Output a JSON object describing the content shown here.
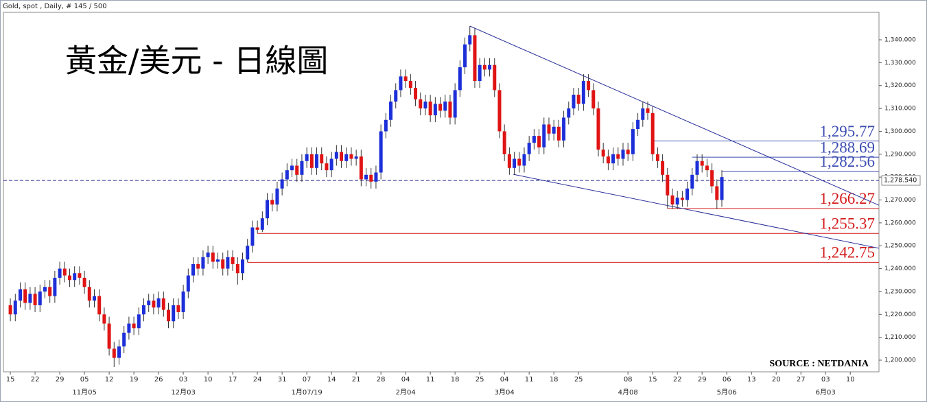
{
  "chart_data": {
    "type": "candlestick",
    "header": "Gold, spot , Daily, # 145 / 500",
    "title": "黃金/美元 - 日線圖",
    "source": "SOURCE : NETDANIA",
    "up_color": "#1c2fd8",
    "down_color": "#e01414",
    "open": [
      1224,
      1220,
      1226,
      1231,
      1225,
      1229,
      1224,
      1230,
      1232,
      1228,
      1236,
      1240,
      1237,
      1235,
      1238,
      1236,
      1232,
      1226,
      1228,
      1220,
      1216,
      1205,
      1201,
      1206,
      1212,
      1216,
      1214,
      1220,
      1224,
      1226,
      1223,
      1227,
      1222,
      1217,
      1224,
      1221,
      1230,
      1237,
      1242,
      1240,
      1245,
      1247,
      1243,
      1244,
      1240,
      1245,
      1242,
      1238,
      1244,
      1250,
      1258,
      1257,
      1262,
      1270,
      1268,
      1275,
      1279,
      1283,
      1285,
      1281,
      1287,
      1290,
      1284,
      1290,
      1286,
      1283,
      1288,
      1291,
      1287,
      1290,
      1288,
      1289,
      1279,
      1281,
      1278,
      1282,
      1300,
      1305,
      1313,
      1318,
      1324,
      1322,
      1319,
      1314,
      1310,
      1313,
      1307,
      1312,
      1309,
      1313,
      1306,
      1318,
      1328,
      1338,
      1342,
      1322,
      1329,
      1327,
      1329,
      1318,
      1300,
      1290,
      1284,
      1288,
      1285,
      1290,
      1295,
      1298,
      1293,
      1303,
      1299,
      1302,
      1296,
      1306,
      1310,
      1316,
      1312,
      1322,
      1318,
      1310,
      1292,
      1289,
      1286,
      1290,
      1288,
      1292,
      1290,
      1301,
      1305,
      1310,
      1308,
      1290,
      1287,
      1281,
      1272,
      1268,
      1271,
      1270,
      1275,
      1281,
      1287,
      1285,
      1283,
      1276,
      1270
    ],
    "high": [
      1227,
      1229,
      1234,
      1234,
      1232,
      1232,
      1233,
      1235,
      1235,
      1239,
      1243,
      1243,
      1240,
      1241,
      1241,
      1239,
      1235,
      1231,
      1231,
      1223,
      1219,
      1208,
      1209,
      1215,
      1219,
      1219,
      1223,
      1227,
      1229,
      1229,
      1230,
      1230,
      1225,
      1227,
      1227,
      1233,
      1240,
      1245,
      1245,
      1248,
      1250,
      1250,
      1247,
      1247,
      1248,
      1248,
      1245,
      1247,
      1253,
      1261,
      1261,
      1265,
      1273,
      1273,
      1278,
      1282,
      1286,
      1288,
      1288,
      1290,
      1293,
      1293,
      1293,
      1293,
      1289,
      1291,
      1294,
      1294,
      1293,
      1293,
      1292,
      1292,
      1284,
      1284,
      1285,
      1303,
      1308,
      1316,
      1321,
      1327,
      1327,
      1325,
      1322,
      1317,
      1316,
      1316,
      1315,
      1315,
      1316,
      1316,
      1321,
      1331,
      1341,
      1346,
      1345,
      1332,
      1332,
      1332,
      1332,
      1321,
      1303,
      1293,
      1291,
      1291,
      1293,
      1298,
      1301,
      1301,
      1306,
      1306,
      1305,
      1305,
      1309,
      1313,
      1319,
      1319,
      1325,
      1325,
      1321,
      1313,
      1295,
      1292,
      1293,
      1293,
      1295,
      1295,
      1304,
      1308,
      1313,
      1313,
      1311,
      1293,
      1290,
      1284,
      1275,
      1274,
      1274,
      1278,
      1284,
      1290,
      1290,
      1288,
      1286,
      1279,
      1283
    ],
    "low": [
      1217,
      1217,
      1223,
      1222,
      1222,
      1221,
      1221,
      1227,
      1225,
      1225,
      1233,
      1234,
      1232,
      1232,
      1233,
      1229,
      1223,
      1223,
      1217,
      1213,
      1202,
      1197,
      1198,
      1203,
      1209,
      1211,
      1211,
      1217,
      1221,
      1220,
      1220,
      1219,
      1214,
      1214,
      1218,
      1218,
      1227,
      1234,
      1237,
      1237,
      1242,
      1240,
      1240,
      1237,
      1237,
      1239,
      1233,
      1235,
      1242.75,
      1247,
      1255.37,
      1256,
      1259,
      1265,
      1265,
      1272,
      1276,
      1280,
      1278,
      1278,
      1284,
      1281,
      1281,
      1283,
      1280,
      1280,
      1285,
      1284,
      1284,
      1285,
      1285,
      1276,
      1276,
      1275,
      1275,
      1279,
      1297,
      1302,
      1310,
      1315,
      1319,
      1316,
      1311,
      1307,
      1307,
      1304,
      1304,
      1306,
      1306,
      1303,
      1303,
      1315,
      1325,
      1335,
      1319,
      1319,
      1324,
      1324,
      1315,
      1297,
      1287,
      1281,
      1281,
      1282,
      1282,
      1287,
      1292,
      1290,
      1290,
      1296,
      1296,
      1293,
      1293,
      1303,
      1307,
      1309,
      1309,
      1315,
      1307,
      1289,
      1286,
      1283,
      1283,
      1285,
      1285,
      1287,
      1287,
      1298,
      1302,
      1305,
      1287,
      1284,
      1278,
      1266.27,
      1266,
      1266,
      1267,
      1267,
      1272,
      1278,
      1282,
      1280,
      1273,
      1266,
      1267
    ],
    "close": [
      1220,
      1226,
      1231,
      1225,
      1229,
      1224,
      1230,
      1232,
      1228,
      1236,
      1240,
      1237,
      1235,
      1238,
      1236,
      1232,
      1226,
      1228,
      1220,
      1216,
      1205,
      1201,
      1206,
      1212,
      1216,
      1214,
      1220,
      1224,
      1226,
      1223,
      1227,
      1222,
      1217,
      1224,
      1221,
      1230,
      1237,
      1242,
      1240,
      1245,
      1247,
      1243,
      1244,
      1240,
      1245,
      1242,
      1238,
      1244,
      1250,
      1258,
      1257,
      1262,
      1270,
      1268,
      1275,
      1279,
      1283,
      1285,
      1281,
      1287,
      1290,
      1284,
      1290,
      1286,
      1283,
      1288,
      1291,
      1287,
      1290,
      1288,
      1289,
      1279,
      1281,
      1278,
      1282,
      1300,
      1305,
      1313,
      1318,
      1324,
      1322,
      1319,
      1314,
      1310,
      1313,
      1307,
      1312,
      1309,
      1313,
      1306,
      1318,
      1328,
      1338,
      1342,
      1322,
      1329,
      1327,
      1329,
      1318,
      1300,
      1290,
      1284,
      1288,
      1285,
      1290,
      1295,
      1298,
      1293,
      1303,
      1299,
      1302,
      1296,
      1306,
      1310,
      1316,
      1312,
      1322,
      1318,
      1310,
      1292,
      1289,
      1286,
      1290,
      1288,
      1292,
      1290,
      1301,
      1305,
      1310,
      1308,
      1290,
      1287,
      1281,
      1272,
      1268,
      1271,
      1270,
      1275,
      1281,
      1287,
      1285,
      1283,
      1276,
      1270,
      1280
    ],
    "xlim": [
      -1.4,
      175.8
    ],
    "xticks": [
      {
        "value": 0,
        "label": "15"
      },
      {
        "value": 5,
        "label": "22"
      },
      {
        "value": 10,
        "label": "29"
      },
      {
        "value": 15,
        "label": "05"
      },
      {
        "value": 20,
        "label": "12"
      },
      {
        "value": 25,
        "label": "19"
      },
      {
        "value": 30,
        "label": "26"
      },
      {
        "value": 35,
        "label": "03"
      },
      {
        "value": 40,
        "label": "10"
      },
      {
        "value": 45,
        "label": "17"
      },
      {
        "value": 50,
        "label": "24"
      },
      {
        "value": 55,
        "label": "31"
      },
      {
        "value": 60,
        "label": "07"
      },
      {
        "value": 65,
        "label": "14"
      },
      {
        "value": 70,
        "label": "21"
      },
      {
        "value": 75,
        "label": "28"
      },
      {
        "value": 80,
        "label": "04"
      },
      {
        "value": 85,
        "label": "11"
      },
      {
        "value": 90,
        "label": "18"
      },
      {
        "value": 95,
        "label": "25"
      },
      {
        "value": 100,
        "label": "04"
      },
      {
        "value": 105,
        "label": "11"
      },
      {
        "value": 110,
        "label": "18"
      },
      {
        "value": 115,
        "label": "25"
      },
      {
        "value": 125,
        "label": "08"
      },
      {
        "value": 130,
        "label": "15"
      },
      {
        "value": 135,
        "label": "22"
      },
      {
        "value": 140,
        "label": "29"
      },
      {
        "value": 145,
        "label": "06"
      },
      {
        "value": 150,
        "label": "13"
      },
      {
        "value": 155,
        "label": "20"
      },
      {
        "value": 160,
        "label": "27"
      },
      {
        "value": 165,
        "label": "03"
      },
      {
        "value": 170,
        "label": "10"
      }
    ],
    "month_ticks": [
      {
        "value": 15,
        "label": "11月05"
      },
      {
        "value": 35,
        "label": "12月03"
      },
      {
        "value": 60,
        "label": "1月07/19"
      },
      {
        "value": 80,
        "label": "2月04"
      },
      {
        "value": 100,
        "label": "3月04"
      },
      {
        "value": 125,
        "label": "4月08"
      },
      {
        "value": 145,
        "label": "5月06"
      },
      {
        "value": 165,
        "label": "6月03"
      }
    ],
    "ylim": [
      1194.9,
      1352
    ],
    "yticks": [
      {
        "value": 1200,
        "label": "1,200.000"
      },
      {
        "value": 1210,
        "label": "1,210.000"
      },
      {
        "value": 1220,
        "label": "1,220.000"
      },
      {
        "value": 1230,
        "label": "1,230.000"
      },
      {
        "value": 1240,
        "label": "1,240.000"
      },
      {
        "value": 1250,
        "label": "1,250.000"
      },
      {
        "value": 1260,
        "label": "1,260.000"
      },
      {
        "value": 1270,
        "label": "1,270.000"
      },
      {
        "value": 1280,
        "label": "1,280.000"
      },
      {
        "value": 1290,
        "label": "1,290.000"
      },
      {
        "value": 1300,
        "label": "1,300.000"
      },
      {
        "value": 1310,
        "label": "1,310.000"
      },
      {
        "value": 1320,
        "label": "1,320.000"
      },
      {
        "value": 1330,
        "label": "1,330.000"
      },
      {
        "value": 1340,
        "label": "1,340.000"
      }
    ],
    "current_price": {
      "value": 1278.54,
      "label": "1,278.540"
    },
    "levels": [
      {
        "value": 1295.77,
        "label": "1,295.77",
        "from": 130,
        "color": "#3b4bb0"
      },
      {
        "value": 1288.69,
        "label": "1,288.69",
        "from": 138,
        "color": "#3b4bb0"
      },
      {
        "value": 1282.56,
        "label": "1,282.56",
        "from": 144,
        "color": "#3b4bb0"
      },
      {
        "value": 1266.27,
        "label": "1,266.27",
        "from": 133,
        "color": "#d41a1a"
      },
      {
        "value": 1255.37,
        "label": "1,255.37",
        "from": 50,
        "color": "#d41a1a"
      },
      {
        "value": 1242.75,
        "label": "1,242.75",
        "from": 48,
        "color": "#d41a1a"
      }
    ],
    "trend_lines": [
      {
        "x": [
          93,
          175.8
        ],
        "y": [
          1346,
          1267.7
        ],
        "color": "#2a2f9a"
      },
      {
        "x": [
          101.8,
          175.8
        ],
        "y": [
          1281.2,
          1248.9
        ],
        "color": "#2a2f9a"
      }
    ]
  }
}
